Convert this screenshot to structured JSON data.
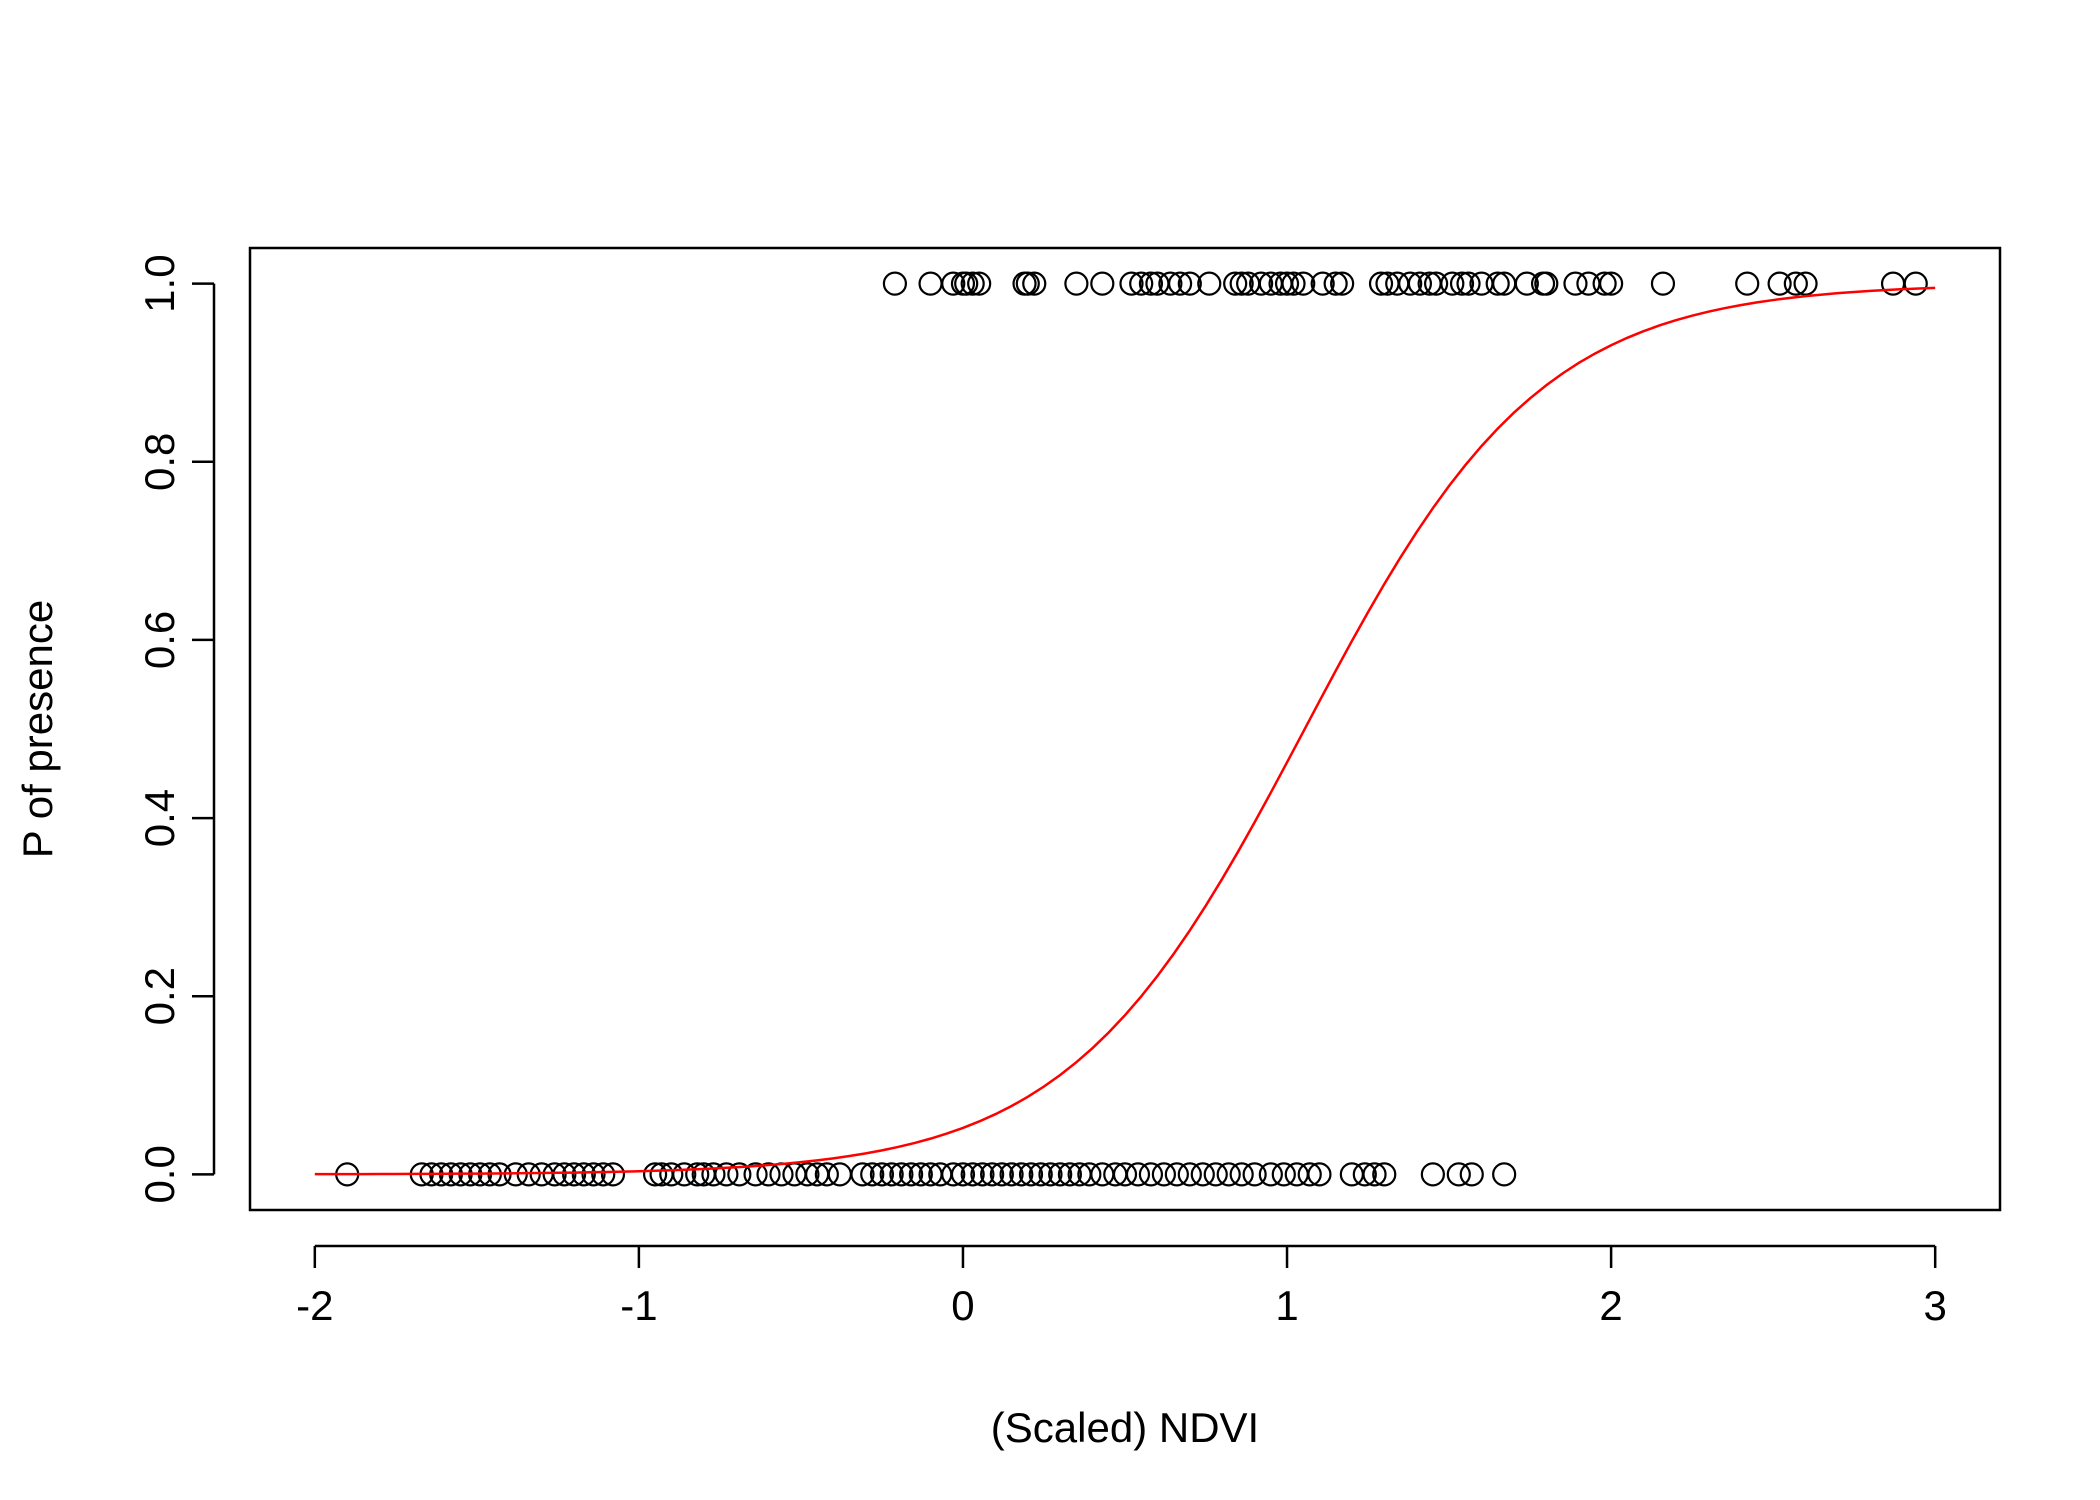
{
  "chart_data": {
    "type": "scatter",
    "title": "",
    "xlabel": "(Scaled) NDVI",
    "ylabel": "P of presence",
    "xlim": [
      -2.2,
      3.2
    ],
    "ylim": [
      -0.04,
      1.04
    ],
    "xticks": [
      -2,
      -1,
      0,
      1,
      2,
      3
    ],
    "xtick_labels": [
      "-2",
      "-1",
      "0",
      "1",
      "2",
      "3"
    ],
    "yticks": [
      0.0,
      0.2,
      0.4,
      0.6,
      0.8,
      1.0
    ],
    "ytick_labels": [
      "0.0",
      "0.2",
      "0.4",
      "0.6",
      "0.8",
      "1.0"
    ],
    "grid": false,
    "legend": "none",
    "colors": {
      "points": "#000000",
      "fit_line": "#ff0000"
    },
    "series": [
      {
        "kind": "points",
        "y": 1,
        "x": [
          -0.21,
          -0.1,
          -0.03,
          0.0,
          0.01,
          0.03,
          0.05,
          0.19,
          0.2,
          0.22,
          0.35,
          0.43,
          0.52,
          0.55,
          0.58,
          0.6,
          0.64,
          0.67,
          0.7,
          0.76,
          0.84,
          0.86,
          0.88,
          0.92,
          0.95,
          0.98,
          1.0,
          1.02,
          1.05,
          1.11,
          1.15,
          1.17,
          1.29,
          1.31,
          1.34,
          1.38,
          1.41,
          1.44,
          1.46,
          1.51,
          1.54,
          1.56,
          1.6,
          1.65,
          1.67,
          1.74,
          1.79,
          1.8,
          1.89,
          1.93,
          1.98,
          2.0,
          2.16,
          2.42,
          2.52,
          2.57,
          2.6,
          2.87,
          2.94
        ]
      },
      {
        "kind": "points",
        "y": 0,
        "x": [
          -1.9,
          -1.67,
          -1.64,
          -1.61,
          -1.58,
          -1.55,
          -1.52,
          -1.49,
          -1.46,
          -1.43,
          -1.38,
          -1.34,
          -1.3,
          -1.26,
          -1.23,
          -1.2,
          -1.17,
          -1.14,
          -1.11,
          -1.08,
          -0.95,
          -0.93,
          -0.9,
          -0.86,
          -0.82,
          -0.8,
          -0.77,
          -0.73,
          -0.69,
          -0.64,
          -0.6,
          -0.56,
          -0.52,
          -0.48,
          -0.45,
          -0.42,
          -0.38,
          -0.31,
          -0.28,
          -0.25,
          -0.22,
          -0.19,
          -0.16,
          -0.13,
          -0.1,
          -0.07,
          -0.03,
          0.0,
          0.03,
          0.06,
          0.09,
          0.12,
          0.15,
          0.18,
          0.21,
          0.24,
          0.27,
          0.3,
          0.33,
          0.36,
          0.39,
          0.43,
          0.47,
          0.5,
          0.54,
          0.58,
          0.62,
          0.66,
          0.7,
          0.74,
          0.78,
          0.82,
          0.86,
          0.9,
          0.95,
          0.99,
          1.03,
          1.07,
          1.1,
          1.2,
          1.24,
          1.27,
          1.3,
          1.45,
          1.53,
          1.57,
          1.67
        ]
      },
      {
        "kind": "fit-line",
        "name": "",
        "logistic": {
          "intercept": -2.9,
          "slope": 2.75
        },
        "x_range": [
          -2.0,
          3.0
        ]
      }
    ]
  }
}
